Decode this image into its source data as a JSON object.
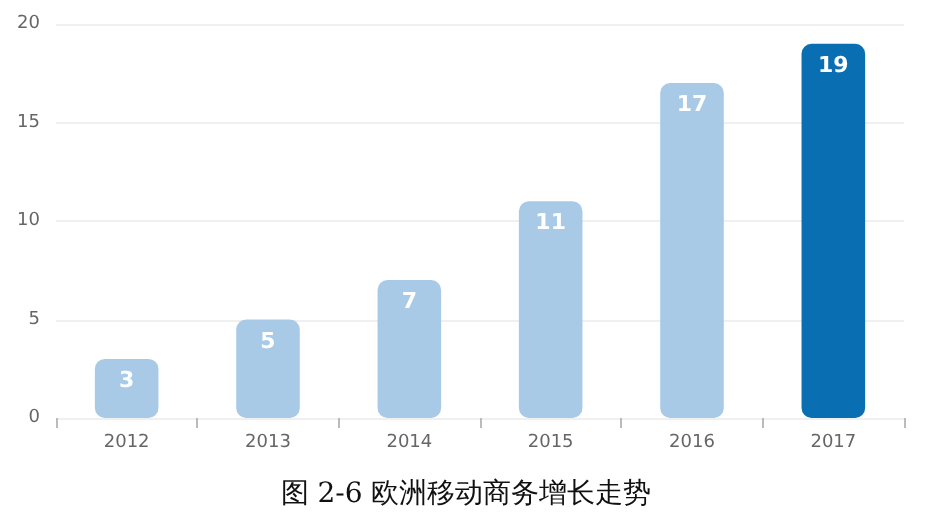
{
  "chart_data": {
    "type": "bar",
    "title": "图 2-6 欧洲移动商务增长走势",
    "categories": [
      "2012",
      "2013",
      "2014",
      "2015",
      "2016",
      "2017"
    ],
    "values": [
      3,
      5,
      7,
      11,
      17,
      19
    ],
    "colors": [
      "#a9cae6",
      "#a9cae6",
      "#a9cae6",
      "#a9cae6",
      "#a9cae6",
      "#0a6fb2"
    ],
    "ylim": [
      0,
      20
    ],
    "yticks": [
      0,
      5,
      10,
      15,
      20
    ],
    "grid": "y",
    "data_labels": true
  }
}
